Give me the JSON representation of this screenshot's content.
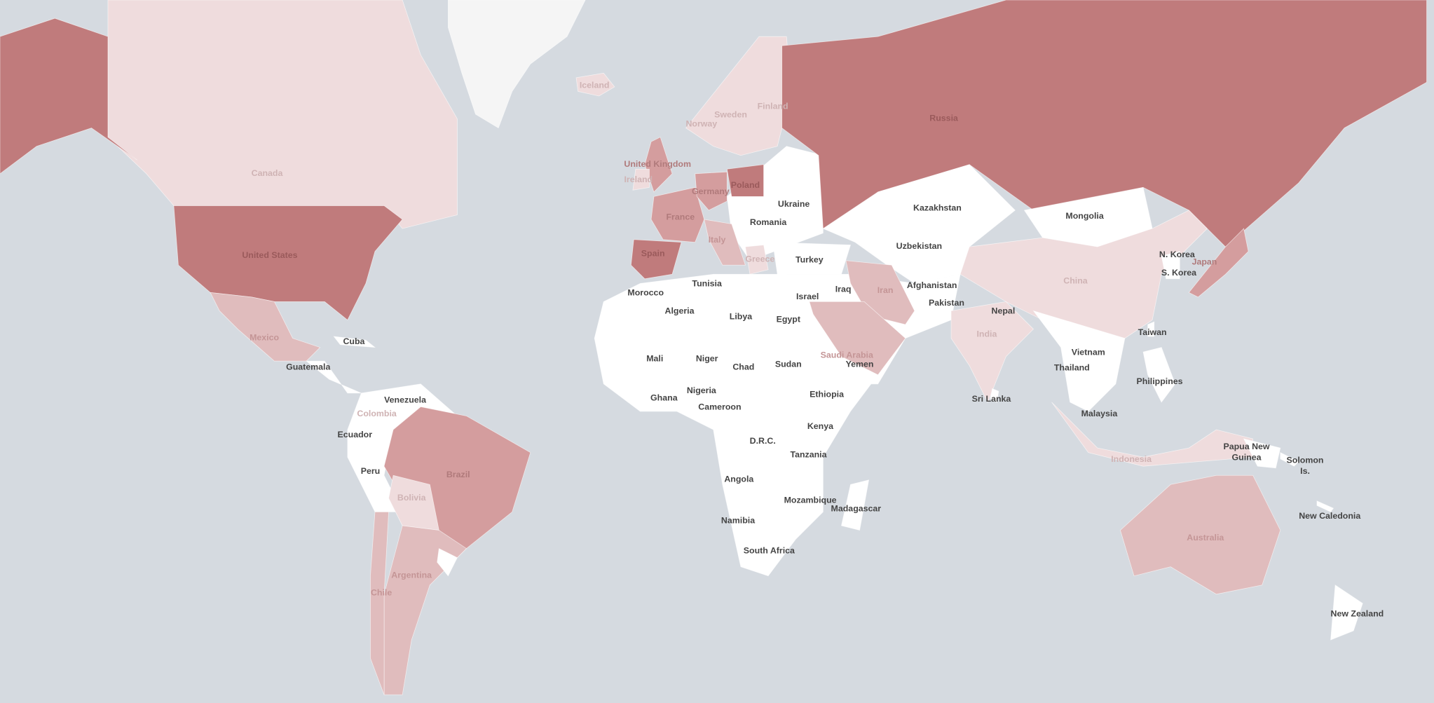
{
  "colors": {
    "ocean": "#d5dae0",
    "no_data": "#f5f5f5",
    "level_0": "#ffffff",
    "level_1": "#efdcdd",
    "level_2": "#e0bcbd",
    "level_3": "#d49d9e",
    "level_4": "#c07b7c",
    "label_dark": "#444444"
  },
  "regions": [
    {
      "id": "greenland",
      "level": "none"
    },
    {
      "id": "canada",
      "level": 1,
      "label": "Canada"
    },
    {
      "id": "alaska",
      "level": 4
    },
    {
      "id": "usa",
      "level": 4,
      "label": "United States"
    },
    {
      "id": "mexico",
      "level": 2,
      "label": "Mexico"
    },
    {
      "id": "central-america",
      "level": 0,
      "label": "Guatemala"
    },
    {
      "id": "cuba",
      "level": 0,
      "label": "Cuba"
    },
    {
      "id": "nw-south-america",
      "level": 0,
      "label": "Venezuela"
    },
    {
      "id": "colombia",
      "level": 1,
      "label": "Colombia"
    },
    {
      "id": "ecuador",
      "level": 0,
      "label": "Ecuador"
    },
    {
      "id": "peru",
      "level": 0,
      "label": "Peru"
    },
    {
      "id": "brazil",
      "level": 3,
      "label": "Brazil"
    },
    {
      "id": "bolivia",
      "level": 1,
      "label": "Bolivia"
    },
    {
      "id": "argentina",
      "level": 2,
      "label": "Argentina"
    },
    {
      "id": "chile",
      "level": 2,
      "label": "Chile"
    },
    {
      "id": "uruguay",
      "level": 0
    },
    {
      "id": "iceland",
      "level": 1,
      "label": "Iceland"
    },
    {
      "id": "scandinavia",
      "level": 1,
      "label": "Norway"
    },
    {
      "id": "sweden",
      "level": 1,
      "label": "Sweden"
    },
    {
      "id": "finland",
      "level": 1,
      "label": "Finland"
    },
    {
      "id": "uk",
      "level": 3,
      "label": "United Kingdom"
    },
    {
      "id": "ireland",
      "level": 1,
      "label": "Ireland"
    },
    {
      "id": "eastern-europe",
      "level": 0,
      "label": "Ukraine"
    },
    {
      "id": "romania",
      "level": 0,
      "label": "Romania"
    },
    {
      "id": "france",
      "level": 3,
      "label": "France"
    },
    {
      "id": "spain",
      "level": 4,
      "label": "Spain"
    },
    {
      "id": "germany",
      "level": 3,
      "label": "Germany"
    },
    {
      "id": "poland",
      "level": 4,
      "label": "Poland"
    },
    {
      "id": "italy",
      "level": 2,
      "label": "Italy"
    },
    {
      "id": "greece",
      "level": 1,
      "label": "Greece"
    },
    {
      "id": "turkey",
      "level": 0,
      "label": "Turkey"
    },
    {
      "id": "russia",
      "level": 4,
      "label": "Russia"
    },
    {
      "id": "kazakhstan",
      "level": 0,
      "label": "Kazakhstan"
    },
    {
      "id": "uzbekistan",
      "level": 0,
      "label": "Uzbekistan"
    },
    {
      "id": "mongolia",
      "level": 0,
      "label": "Mongolia"
    },
    {
      "id": "china",
      "level": 1,
      "label": "China"
    },
    {
      "id": "middle-east",
      "level": 0,
      "label": "Afghanistan"
    },
    {
      "id": "pakistan",
      "level": 0,
      "label": "Pakistan"
    },
    {
      "id": "iraq",
      "level": 0,
      "label": "Iraq"
    },
    {
      "id": "israel",
      "level": 0,
      "label": "Israel"
    },
    {
      "id": "yemen",
      "level": 0,
      "label": "Yemen"
    },
    {
      "id": "iran",
      "level": 2,
      "label": "Iran"
    },
    {
      "id": "saudi-arabia",
      "level": 2,
      "label": "Saudi Arabia"
    },
    {
      "id": "india",
      "level": 1,
      "label": "India"
    },
    {
      "id": "nepal",
      "level": 0,
      "label": "Nepal"
    },
    {
      "id": "sri-lanka",
      "level": 0,
      "label": "Sri Lanka"
    },
    {
      "id": "se-asia",
      "level": 0,
      "label": "Thailand"
    },
    {
      "id": "vietnam",
      "level": 0,
      "label": "Vietnam"
    },
    {
      "id": "malaysia",
      "level": 0,
      "label": "Malaysia"
    },
    {
      "id": "korea",
      "level": 0,
      "label": "N. Korea"
    },
    {
      "id": "s-korea",
      "level": 0,
      "label": "S. Korea"
    },
    {
      "id": "japan",
      "level": 3,
      "label": "Japan"
    },
    {
      "id": "taiwan",
      "level": 0,
      "label": "Taiwan"
    },
    {
      "id": "philippines",
      "level": 0,
      "label": "Philippines"
    },
    {
      "id": "indonesia",
      "level": 1,
      "label": "Indonesia"
    },
    {
      "id": "png",
      "level": 0,
      "label": "Papua New Guinea"
    },
    {
      "id": "solomon",
      "level": 0,
      "label": "Solomon Is."
    },
    {
      "id": "new-caledonia",
      "level": 0,
      "label": "New Caledonia"
    },
    {
      "id": "australia",
      "level": 2,
      "label": "Australia"
    },
    {
      "id": "new-zealand",
      "level": 0,
      "label": "New Zealand"
    },
    {
      "id": "africa",
      "level": 0,
      "label": "Algeria"
    },
    {
      "id": "morocco",
      "level": 0,
      "label": "Morocco"
    },
    {
      "id": "tunisia",
      "level": 0,
      "label": "Tunisia"
    },
    {
      "id": "libya",
      "level": 0,
      "label": "Libya"
    },
    {
      "id": "egypt",
      "level": 0,
      "label": "Egypt"
    },
    {
      "id": "mali",
      "level": 0,
      "label": "Mali"
    },
    {
      "id": "niger",
      "level": 0,
      "label": "Niger"
    },
    {
      "id": "chad",
      "level": 0,
      "label": "Chad"
    },
    {
      "id": "sudan",
      "level": 0,
      "label": "Sudan"
    },
    {
      "id": "ethiopia",
      "level": 0,
      "label": "Ethiopia"
    },
    {
      "id": "ghana",
      "level": 0,
      "label": "Ghana"
    },
    {
      "id": "nigeria",
      "level": 0,
      "label": "Nigeria"
    },
    {
      "id": "cameroon",
      "level": 0,
      "label": "Cameroon"
    },
    {
      "id": "kenya",
      "level": 0,
      "label": "Kenya"
    },
    {
      "id": "drc",
      "level": 0,
      "label": "D.R.C."
    },
    {
      "id": "tanzania",
      "level": 0,
      "label": "Tanzania"
    },
    {
      "id": "angola",
      "level": 0,
      "label": "Angola"
    },
    {
      "id": "mozambique",
      "level": 0,
      "label": "Mozambique"
    },
    {
      "id": "madagascar",
      "level": 0,
      "label": "Madagascar"
    },
    {
      "id": "namibia",
      "level": 0,
      "label": "Namibia"
    },
    {
      "id": "south-africa",
      "level": 0,
      "label": "South Africa"
    }
  ]
}
